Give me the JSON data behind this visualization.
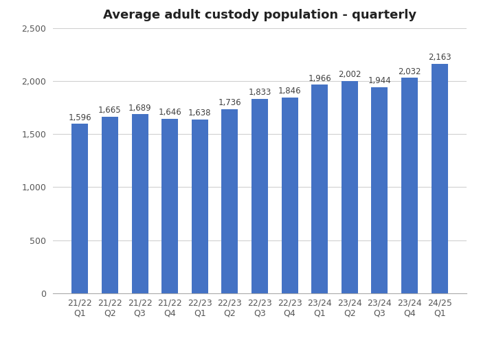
{
  "title": "Average adult custody population - quarterly",
  "categories": [
    "21/22\nQ1",
    "21/22\nQ2",
    "21/22\nQ3",
    "21/22\nQ4",
    "22/23\nQ1",
    "22/23\nQ2",
    "22/23\nQ3",
    "22/23\nQ4",
    "23/24\nQ1",
    "23/24\nQ2",
    "23/24\nQ3",
    "23/24\nQ4",
    "24/25\nQ1"
  ],
  "values": [
    1596,
    1665,
    1689,
    1646,
    1638,
    1736,
    1833,
    1846,
    1966,
    2002,
    1944,
    2032,
    2163
  ],
  "bar_color": "#4472C4",
  "ylim": [
    0,
    2500
  ],
  "yticks": [
    0,
    500,
    1000,
    1500,
    2000,
    2500
  ],
  "title_fontsize": 13,
  "tick_fontsize": 9,
  "label_fontsize": 8.5,
  "background_color": "#ffffff",
  "grid_color": "#d0d0d0"
}
